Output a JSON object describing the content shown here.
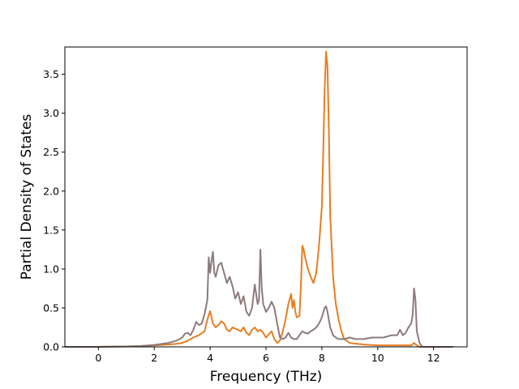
{
  "chart_data": {
    "type": "line",
    "title": "",
    "xlabel": "Frequency (THz)",
    "ylabel": "Partial Density of States",
    "xlim": [
      -1.2,
      13.2
    ],
    "ylim": [
      0,
      3.85
    ],
    "xticks": [
      0,
      2,
      4,
      6,
      8,
      10,
      12
    ],
    "yticks": [
      0.0,
      0.5,
      1.0,
      1.5,
      2.0,
      2.5,
      3.0,
      3.5
    ],
    "xtick_labels": [
      "0",
      "2",
      "4",
      "6",
      "8",
      "10",
      "12"
    ],
    "ytick_labels": [
      "0.0",
      "0.5",
      "1.0",
      "1.5",
      "2.0",
      "2.5",
      "3.0",
      "3.5"
    ],
    "grid": false,
    "legend": "none",
    "series": [
      {
        "color": "#e67e22",
        "x": [
          -1.2,
          0,
          1,
          1.5,
          2,
          2.5,
          2.8,
          3.0,
          3.2,
          3.4,
          3.6,
          3.8,
          3.9,
          4.0,
          4.1,
          4.2,
          4.3,
          4.4,
          4.5,
          4.6,
          4.7,
          4.8,
          5.0,
          5.1,
          5.2,
          5.3,
          5.4,
          5.5,
          5.6,
          5.7,
          5.8,
          5.9,
          6.0,
          6.1,
          6.2,
          6.3,
          6.4,
          6.5,
          6.6,
          6.7,
          6.8,
          6.9,
          6.95,
          7.0,
          7.05,
          7.1,
          7.2,
          7.25,
          7.3,
          7.35,
          7.4,
          7.5,
          7.6,
          7.7,
          7.8,
          7.9,
          8.0,
          8.05,
          8.1,
          8.15,
          8.2,
          8.25,
          8.3,
          8.4,
          8.5,
          8.6,
          8.7,
          8.8,
          9.0,
          9.5,
          10.0,
          10.5,
          11.0,
          11.2,
          11.3,
          11.4,
          11.5,
          11.6,
          12.0,
          12.7
        ],
        "y": [
          0,
          0,
          0.005,
          0.01,
          0.02,
          0.03,
          0.04,
          0.05,
          0.08,
          0.12,
          0.15,
          0.2,
          0.35,
          0.46,
          0.3,
          0.25,
          0.28,
          0.33,
          0.3,
          0.22,
          0.2,
          0.25,
          0.22,
          0.2,
          0.25,
          0.18,
          0.15,
          0.22,
          0.25,
          0.2,
          0.22,
          0.18,
          0.12,
          0.16,
          0.2,
          0.1,
          0.05,
          0.08,
          0.2,
          0.35,
          0.55,
          0.68,
          0.5,
          0.6,
          0.45,
          0.38,
          0.4,
          0.8,
          1.3,
          1.25,
          1.15,
          1.0,
          0.9,
          0.82,
          0.95,
          1.3,
          1.8,
          2.5,
          3.3,
          3.79,
          3.6,
          2.8,
          1.7,
          0.9,
          0.55,
          0.35,
          0.2,
          0.1,
          0.05,
          0.03,
          0.02,
          0.02,
          0.02,
          0.02,
          0.05,
          0.02,
          0.0,
          0,
          0,
          0
        ]
      },
      {
        "color": "#8c7b7c",
        "x": [
          -1.2,
          0,
          1,
          1.5,
          2,
          2.5,
          2.8,
          3.0,
          3.1,
          3.2,
          3.3,
          3.4,
          3.5,
          3.6,
          3.7,
          3.8,
          3.9,
          3.95,
          4.0,
          4.05,
          4.1,
          4.15,
          4.2,
          4.3,
          4.4,
          4.5,
          4.6,
          4.7,
          4.8,
          4.9,
          5.0,
          5.1,
          5.2,
          5.3,
          5.4,
          5.5,
          5.6,
          5.7,
          5.75,
          5.8,
          5.85,
          5.9,
          6.0,
          6.1,
          6.2,
          6.3,
          6.4,
          6.5,
          6.6,
          6.7,
          6.8,
          6.9,
          7.0,
          7.1,
          7.2,
          7.3,
          7.4,
          7.5,
          7.6,
          7.7,
          7.8,
          7.9,
          8.0,
          8.1,
          8.15,
          8.2,
          8.3,
          8.4,
          8.5,
          8.6,
          8.8,
          9.0,
          9.2,
          9.5,
          9.8,
          10.0,
          10.2,
          10.5,
          10.7,
          10.8,
          10.9,
          11.0,
          11.1,
          11.2,
          11.25,
          11.3,
          11.35,
          11.4,
          11.5,
          11.6,
          12.0,
          12.7
        ],
        "y": [
          0,
          0,
          0.005,
          0.01,
          0.025,
          0.05,
          0.08,
          0.12,
          0.17,
          0.18,
          0.15,
          0.22,
          0.32,
          0.28,
          0.3,
          0.42,
          0.6,
          1.15,
          0.95,
          1.1,
          1.22,
          0.95,
          0.9,
          1.05,
          1.08,
          0.95,
          0.82,
          0.9,
          0.78,
          0.62,
          0.7,
          0.55,
          0.65,
          0.45,
          0.4,
          0.5,
          0.8,
          0.55,
          0.6,
          1.25,
          0.75,
          0.55,
          0.45,
          0.5,
          0.58,
          0.5,
          0.3,
          0.12,
          0.1,
          0.12,
          0.18,
          0.12,
          0.1,
          0.1,
          0.15,
          0.2,
          0.18,
          0.17,
          0.2,
          0.22,
          0.25,
          0.3,
          0.38,
          0.5,
          0.52,
          0.45,
          0.25,
          0.15,
          0.12,
          0.1,
          0.1,
          0.12,
          0.1,
          0.1,
          0.12,
          0.12,
          0.12,
          0.15,
          0.15,
          0.22,
          0.15,
          0.18,
          0.25,
          0.3,
          0.4,
          0.75,
          0.6,
          0.2,
          0.05,
          0,
          0,
          0
        ]
      }
    ]
  }
}
